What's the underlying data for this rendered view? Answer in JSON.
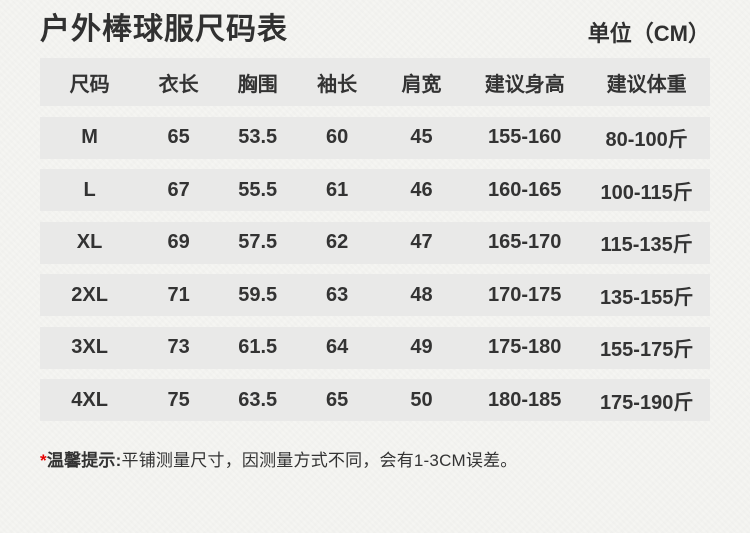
{
  "page": {
    "title": "户外棒球服尺码表",
    "unit_label": "单位（CM）"
  },
  "table": {
    "headers": [
      "尺码",
      "衣长",
      "胸围",
      "袖长",
      "肩宽",
      "建议身高",
      "建议体重"
    ],
    "rows": [
      [
        "M",
        "65",
        "53.5",
        "60",
        "45",
        "155-160",
        "80-100斤"
      ],
      [
        "L",
        "67",
        "55.5",
        "61",
        "46",
        "160-165",
        "100-115斤"
      ],
      [
        "XL",
        "69",
        "57.5",
        "62",
        "47",
        "165-170",
        "115-135斤"
      ],
      [
        "2XL",
        "71",
        "59.5",
        "63",
        "48",
        "170-175",
        "135-155斤"
      ],
      [
        "3XL",
        "73",
        "61.5",
        "64",
        "49",
        "175-180",
        "155-175斤"
      ],
      [
        "4XL",
        "75",
        "63.5",
        "65",
        "50",
        "180-185",
        "175-190斤"
      ]
    ]
  },
  "footnote": {
    "asterisk": "*",
    "label": "温馨提示:",
    "text": "平铺测量尺寸，因测量方式不同，会有1-3CM误差。"
  },
  "colors": {
    "background": "#f5f5f2",
    "row_band": "#e9e9e8",
    "text": "#333333",
    "asterisk_red": "#e60000"
  }
}
